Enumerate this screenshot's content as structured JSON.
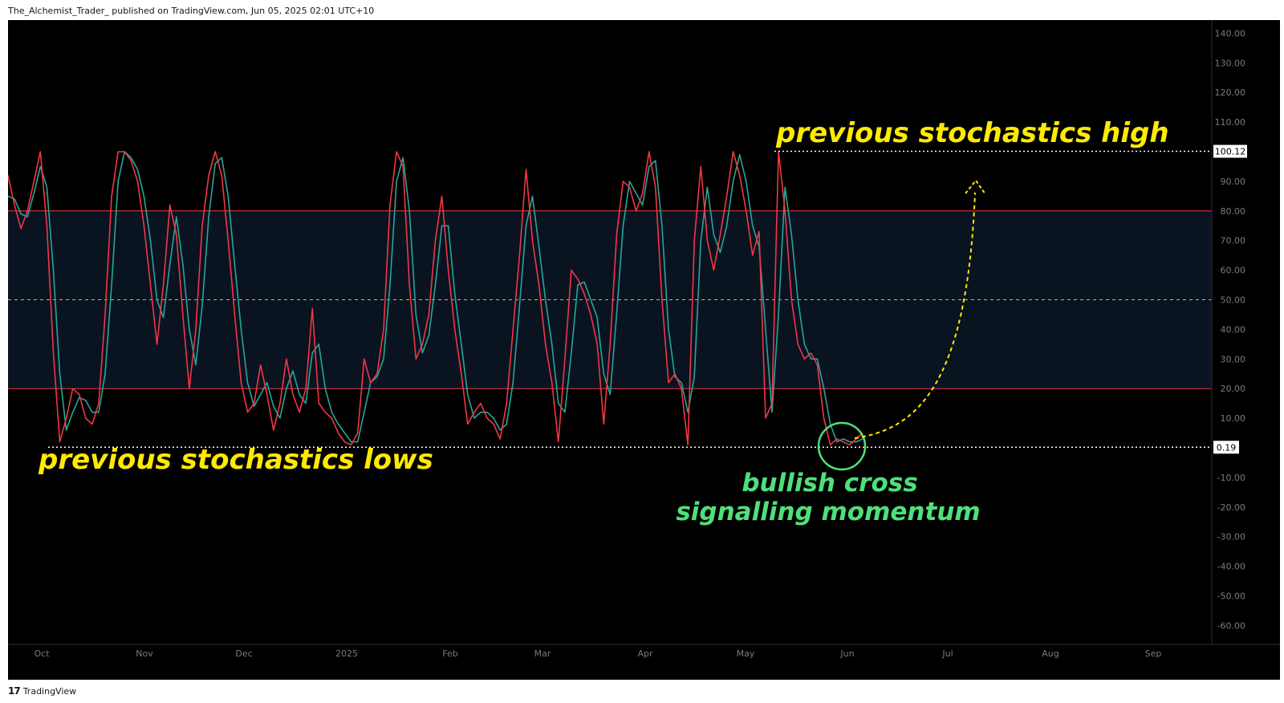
{
  "header": {
    "publisher_line": "The_Alchemist_Trader_ published on TradingView.com, Jun 05, 2025 02:01 UTC+10"
  },
  "footer": {
    "brand": "TradingView",
    "logo_icon": "tradingview-logo-icon"
  },
  "colors": {
    "background": "#000000",
    "band_fill": "#0a1320",
    "k_line": "#f23645",
    "d_line": "#26a69a",
    "band_lines": "#f23645",
    "midline": "#c9c14a",
    "annotation_yellow": "#ffea00",
    "annotation_green": "#4ee07a"
  },
  "annotations": {
    "high_text": "previous stochastics high",
    "lows_text": "previous stochastics lows",
    "cross_line1": "bullish cross",
    "cross_line2": "signalling momentum"
  },
  "price_labels": {
    "high": "100.12",
    "low": "0.19"
  },
  "chart_data": {
    "type": "line",
    "title": "",
    "ylim": [
      -65,
      145
    ],
    "y_ticks": [
      "140.00",
      "130.00",
      "120.00",
      "110.00",
      "100.00",
      "90.00",
      "80.00",
      "70.00",
      "60.00",
      "50.00",
      "40.00",
      "30.00",
      "20.00",
      "10.00",
      "0.00",
      "-10.00",
      "-20.00",
      "-30.00",
      "-40.00",
      "-50.00",
      "-60.00"
    ],
    "x_ticks": [
      "Oct",
      "Nov",
      "Dec",
      "2025",
      "Feb",
      "Mar",
      "Apr",
      "May",
      "Jun",
      "Jul",
      "Aug",
      "Sep"
    ],
    "band": {
      "upper": 80,
      "lower": 20,
      "mid": 50
    },
    "reference_levels": {
      "high": 100.12,
      "low": 0.19
    },
    "series": [
      {
        "key": "k",
        "values": [
          92,
          82,
          74,
          80,
          90,
          100,
          75,
          32,
          2,
          10,
          20,
          18,
          10,
          8,
          15,
          45,
          85,
          100,
          100,
          97,
          90,
          75,
          55,
          35,
          55,
          82,
          72,
          45,
          20,
          40,
          75,
          92,
          100,
          92,
          70,
          45,
          22,
          12,
          15,
          28,
          18,
          6,
          15,
          30,
          18,
          12,
          20,
          47,
          15,
          12,
          10,
          5,
          2,
          1,
          5,
          30,
          22,
          25,
          40,
          82,
          100,
          95,
          55,
          30,
          35,
          45,
          70,
          85,
          60,
          40,
          25,
          8,
          12,
          15,
          10,
          8,
          3,
          15,
          40,
          65,
          94,
          70,
          55,
          35,
          22,
          2,
          30,
          60,
          57,
          52,
          45,
          35,
          8,
          35,
          72,
          90,
          88,
          80,
          86,
          100,
          88,
          50,
          22,
          25,
          20,
          1,
          70,
          95,
          70,
          60,
          72,
          85,
          100,
          92,
          80,
          65,
          73,
          10,
          15,
          100,
          80,
          50,
          35,
          30,
          32,
          28,
          10,
          1,
          3,
          2,
          1,
          3,
          5
        ],
        "n_series": "k"
      },
      {
        "key": "d",
        "values": [
          85,
          84,
          79,
          78,
          86,
          95,
          88,
          60,
          25,
          6,
          12,
          17,
          16,
          12,
          12,
          25,
          55,
          90,
          100,
          98,
          94,
          85,
          70,
          50,
          44,
          62,
          78,
          62,
          40,
          28,
          48,
          78,
          96,
          98,
          85,
          62,
          40,
          22,
          14,
          18,
          22,
          14,
          10,
          20,
          26,
          18,
          15,
          32,
          35,
          20,
          12,
          8,
          5,
          2,
          2,
          12,
          22,
          24,
          30,
          55,
          90,
          98,
          80,
          45,
          32,
          38,
          55,
          75,
          75,
          52,
          35,
          18,
          10,
          12,
          12,
          10,
          6,
          8,
          22,
          48,
          75,
          85,
          68,
          50,
          35,
          15,
          12,
          32,
          55,
          56,
          50,
          44,
          25,
          18,
          45,
          75,
          90,
          86,
          82,
          95,
          97,
          75,
          40,
          24,
          22,
          12,
          24,
          70,
          88,
          72,
          66,
          75,
          90,
          99,
          90,
          75,
          68,
          40,
          12,
          45,
          88,
          72,
          50,
          35,
          30,
          30,
          20,
          8,
          2,
          3,
          2,
          2,
          3
        ]
      }
    ],
    "legend": "none",
    "grid": false
  }
}
